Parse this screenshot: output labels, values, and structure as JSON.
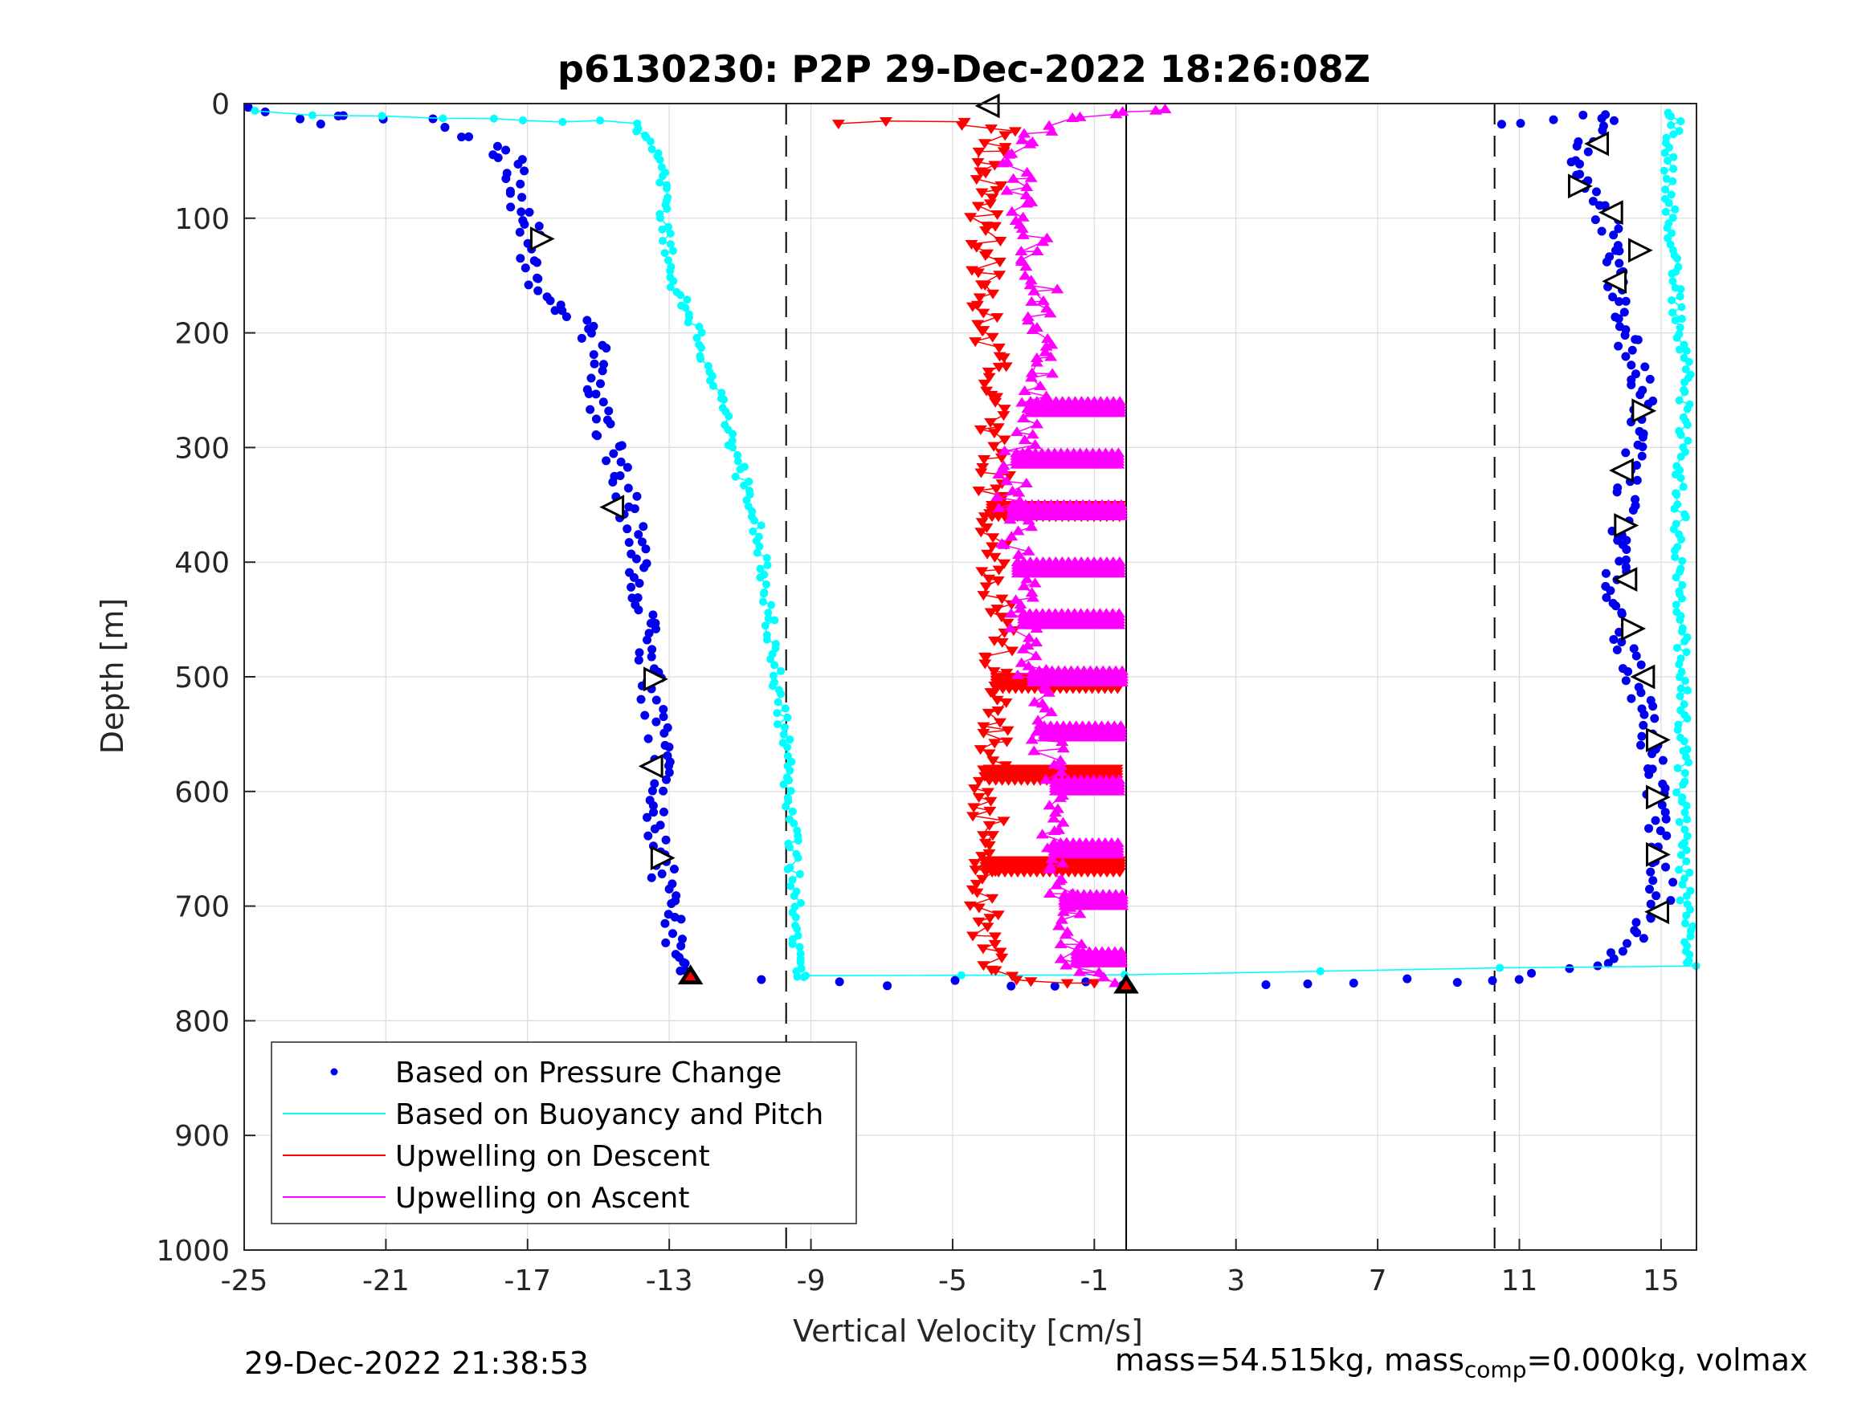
{
  "chart_data": {
    "type": "scatter",
    "title": "p6130230: P2P 29-Dec-2022 18:26:08Z",
    "xlabel": "Vertical Velocity [cm/s]",
    "ylabel": "Depth [m]",
    "xlim": [
      -25,
      16
    ],
    "ylim": [
      0,
      1000
    ],
    "y_reversed": true,
    "xticks": [
      "-25",
      "-21",
      "-17",
      "-13",
      "-9",
      "-5",
      "-1",
      "3",
      "7",
      "11",
      "15"
    ],
    "yticks": [
      "0",
      "100",
      "200",
      "300",
      "400",
      "500",
      "600",
      "700",
      "800",
      "900",
      "1000"
    ],
    "grid": true,
    "legend_location": "bottom-left",
    "reference_lines": {
      "dashed_x": [
        -9.7,
        10.3
      ],
      "solid_x": [
        -0.1
      ]
    },
    "colors": {
      "pressure": "#0000ee",
      "buoyancy": "#00ffff",
      "descent": "#ff0000",
      "ascent": "#ff00ff",
      "marker": "#000000"
    },
    "series": [
      {
        "name": "Based on Pressure Change",
        "style": "dots",
        "descent": [
          [
            -25,
            5
          ],
          [
            -23,
            15
          ],
          [
            -22,
            12
          ],
          [
            -20,
            14
          ],
          [
            -18,
            35
          ],
          [
            -17.2,
            55
          ],
          [
            -17.4,
            80
          ],
          [
            -17,
            100
          ],
          [
            -16.8,
            120
          ],
          [
            -17,
            150
          ],
          [
            -16.5,
            170
          ],
          [
            -15.5,
            190
          ],
          [
            -15,
            220
          ],
          [
            -15,
            260
          ],
          [
            -14.6,
            300
          ],
          [
            -14.2,
            340
          ],
          [
            -14,
            380
          ],
          [
            -13.8,
            420
          ],
          [
            -13.7,
            460
          ],
          [
            -13.5,
            500
          ],
          [
            -13.4,
            540
          ],
          [
            -13.3,
            580
          ],
          [
            -13.4,
            620
          ],
          [
            -13.2,
            660
          ],
          [
            -13.1,
            700
          ],
          [
            -12.8,
            740
          ],
          [
            -12.5,
            762
          ],
          [
            -8,
            766
          ],
          [
            -5,
            767
          ],
          [
            -2,
            768
          ],
          [
            -0.2,
            769
          ]
        ],
        "ascent": [
          [
            3.5,
            769
          ],
          [
            6,
            767
          ],
          [
            9,
            765
          ],
          [
            11,
            762
          ],
          [
            13.5,
            750
          ],
          [
            14.5,
            720
          ],
          [
            15,
            690
          ],
          [
            15,
            650
          ],
          [
            14.9,
            610
          ],
          [
            14.8,
            570
          ],
          [
            14.5,
            530
          ],
          [
            14.3,
            500
          ],
          [
            14,
            470
          ],
          [
            13.8,
            430
          ],
          [
            13.7,
            400
          ],
          [
            13.9,
            370
          ],
          [
            14,
            340
          ],
          [
            14.2,
            310
          ],
          [
            14.5,
            280
          ],
          [
            14.6,
            260
          ],
          [
            14.2,
            230
          ],
          [
            14,
            200
          ],
          [
            13.8,
            175
          ],
          [
            13.6,
            150
          ],
          [
            13.8,
            130
          ],
          [
            13.5,
            100
          ],
          [
            13,
            75
          ],
          [
            12.6,
            55
          ],
          [
            13,
            35
          ],
          [
            13.5,
            20
          ],
          [
            13.3,
            10
          ],
          [
            12,
            15
          ],
          [
            10.5,
            18
          ]
        ]
      },
      {
        "name": "Based on Buoyancy and Pitch",
        "style": "line-markers",
        "descent": [
          [
            -24.8,
            8
          ],
          [
            -21,
            10
          ],
          [
            -18,
            12
          ],
          [
            -16,
            15
          ],
          [
            -14,
            18
          ],
          [
            -13.6,
            30
          ],
          [
            -13.3,
            50
          ],
          [
            -13.2,
            80
          ],
          [
            -13.1,
            110
          ],
          [
            -13,
            150
          ],
          [
            -12.6,
            175
          ],
          [
            -12.2,
            200
          ],
          [
            -11.6,
            260
          ],
          [
            -11,
            320
          ],
          [
            -10.6,
            360
          ],
          [
            -10.3,
            420
          ],
          [
            -10,
            480
          ],
          [
            -9.8,
            540
          ],
          [
            -9.6,
            600
          ],
          [
            -9.5,
            660
          ],
          [
            -9.4,
            720
          ],
          [
            -9.3,
            755
          ],
          [
            -9.2,
            762
          ]
        ],
        "ascent": [
          [
            -9.2,
            762
          ],
          [
            0,
            761
          ],
          [
            15.9,
            752
          ],
          [
            15.8,
            740
          ],
          [
            15.7,
            700
          ],
          [
            15.6,
            600
          ],
          [
            15.6,
            480
          ],
          [
            15.5,
            400
          ],
          [
            15.6,
            300
          ],
          [
            15.7,
            230
          ],
          [
            15.5,
            200
          ],
          [
            15.4,
            150
          ],
          [
            15.3,
            110
          ],
          [
            15.2,
            60
          ],
          [
            15.3,
            30
          ],
          [
            15.4,
            15
          ],
          [
            15.2,
            8
          ]
        ]
      },
      {
        "name": "Upwelling on Descent",
        "style": "triangle-down",
        "profile": [
          [
            -8,
            18
          ],
          [
            -5,
            15
          ],
          [
            -3.5,
            25
          ],
          [
            -3.8,
            40
          ],
          [
            -4,
            70
          ],
          [
            -4.2,
            100
          ],
          [
            -4.0,
            130
          ],
          [
            -4.1,
            160
          ],
          [
            -4.0,
            200
          ],
          [
            -3.9,
            240
          ],
          [
            -3.9,
            280
          ],
          [
            -3.8,
            320
          ],
          [
            -3.9,
            360
          ],
          [
            -3.8,
            400
          ],
          [
            -3.7,
            440
          ],
          [
            -3.7,
            480
          ],
          [
            -3.8,
            520
          ],
          [
            -3.9,
            560
          ],
          [
            -4,
            600
          ],
          [
            -4,
            640
          ],
          [
            -4.1,
            680
          ],
          [
            -4.1,
            720
          ],
          [
            -4,
            750
          ],
          [
            -3.6,
            760
          ],
          [
            -2.5,
            765
          ],
          [
            -1,
            767
          ]
        ],
        "spikes": [
          [
            355,
            -0.2
          ],
          [
            505,
            -0.2
          ],
          [
            585,
            -0.2
          ],
          [
            665,
            -0.2
          ]
        ]
      },
      {
        "name": "Upwelling on Ascent",
        "style": "triangle-up",
        "profile": [
          [
            -0.3,
            765
          ],
          [
            -1.2,
            760
          ],
          [
            -1.6,
            740
          ],
          [
            -1.8,
            700
          ],
          [
            -2.0,
            670
          ],
          [
            -2.2,
            640
          ],
          [
            -2.0,
            610
          ],
          [
            -2.2,
            580
          ],
          [
            -2.4,
            550
          ],
          [
            -2.6,
            520
          ],
          [
            -2.8,
            490
          ],
          [
            -3.0,
            460
          ],
          [
            -3.0,
            430
          ],
          [
            -3.2,
            400
          ],
          [
            -3.2,
            370
          ],
          [
            -3.4,
            340
          ],
          [
            -3.2,
            310
          ],
          [
            -3.0,
            280
          ],
          [
            -2.6,
            250
          ],
          [
            -2.4,
            220
          ],
          [
            -2.6,
            200
          ],
          [
            -2.4,
            170
          ],
          [
            -2.6,
            140
          ],
          [
            -2.8,
            110
          ],
          [
            -3.0,
            80
          ],
          [
            -3.2,
            50
          ],
          [
            -3.0,
            30
          ],
          [
            -2.0,
            15
          ],
          [
            0,
            8
          ],
          [
            1,
            5
          ]
        ],
        "spikes": [
          [
            265,
            -0.2
          ],
          [
            310,
            -0.2
          ],
          [
            355,
            -0.2
          ],
          [
            405,
            -0.2
          ],
          [
            450,
            -0.2
          ],
          [
            500,
            -0.2
          ],
          [
            548,
            -0.2
          ],
          [
            595,
            -0.2
          ],
          [
            650,
            -0.2
          ],
          [
            695,
            -0.2
          ],
          [
            745,
            -0.2
          ]
        ]
      }
    ],
    "event_markers": {
      "left_pointing": [
        [
          -4.0,
          2
        ],
        [
          13.2,
          35
        ],
        [
          -14.6,
          352
        ],
        [
          -13.5,
          578
        ],
        [
          13.9,
          320
        ],
        [
          14.5,
          500
        ],
        [
          14.9,
          705
        ],
        [
          13.6,
          95
        ],
        [
          13.7,
          155
        ],
        [
          14.0,
          415
        ]
      ],
      "right_pointing": [
        [
          -16.6,
          118
        ],
        [
          -13.4,
          502
        ],
        [
          -13.2,
          658
        ],
        [
          12.7,
          72
        ],
        [
          14.4,
          128
        ],
        [
          14.5,
          268
        ],
        [
          14.0,
          368
        ],
        [
          14.2,
          458
        ],
        [
          14.9,
          555
        ],
        [
          14.9,
          605
        ],
        [
          14.9,
          655
        ]
      ],
      "terminal_points": [
        [
          -12.4,
          762
        ],
        [
          -0.1,
          770
        ]
      ]
    }
  },
  "footer": {
    "timestamp": "29-Dec-2022 21:38:53",
    "mass_text": "mass=54.515kg, mass",
    "comp_subscript": "comp",
    "rest_text": "=0.000kg, volmax"
  }
}
